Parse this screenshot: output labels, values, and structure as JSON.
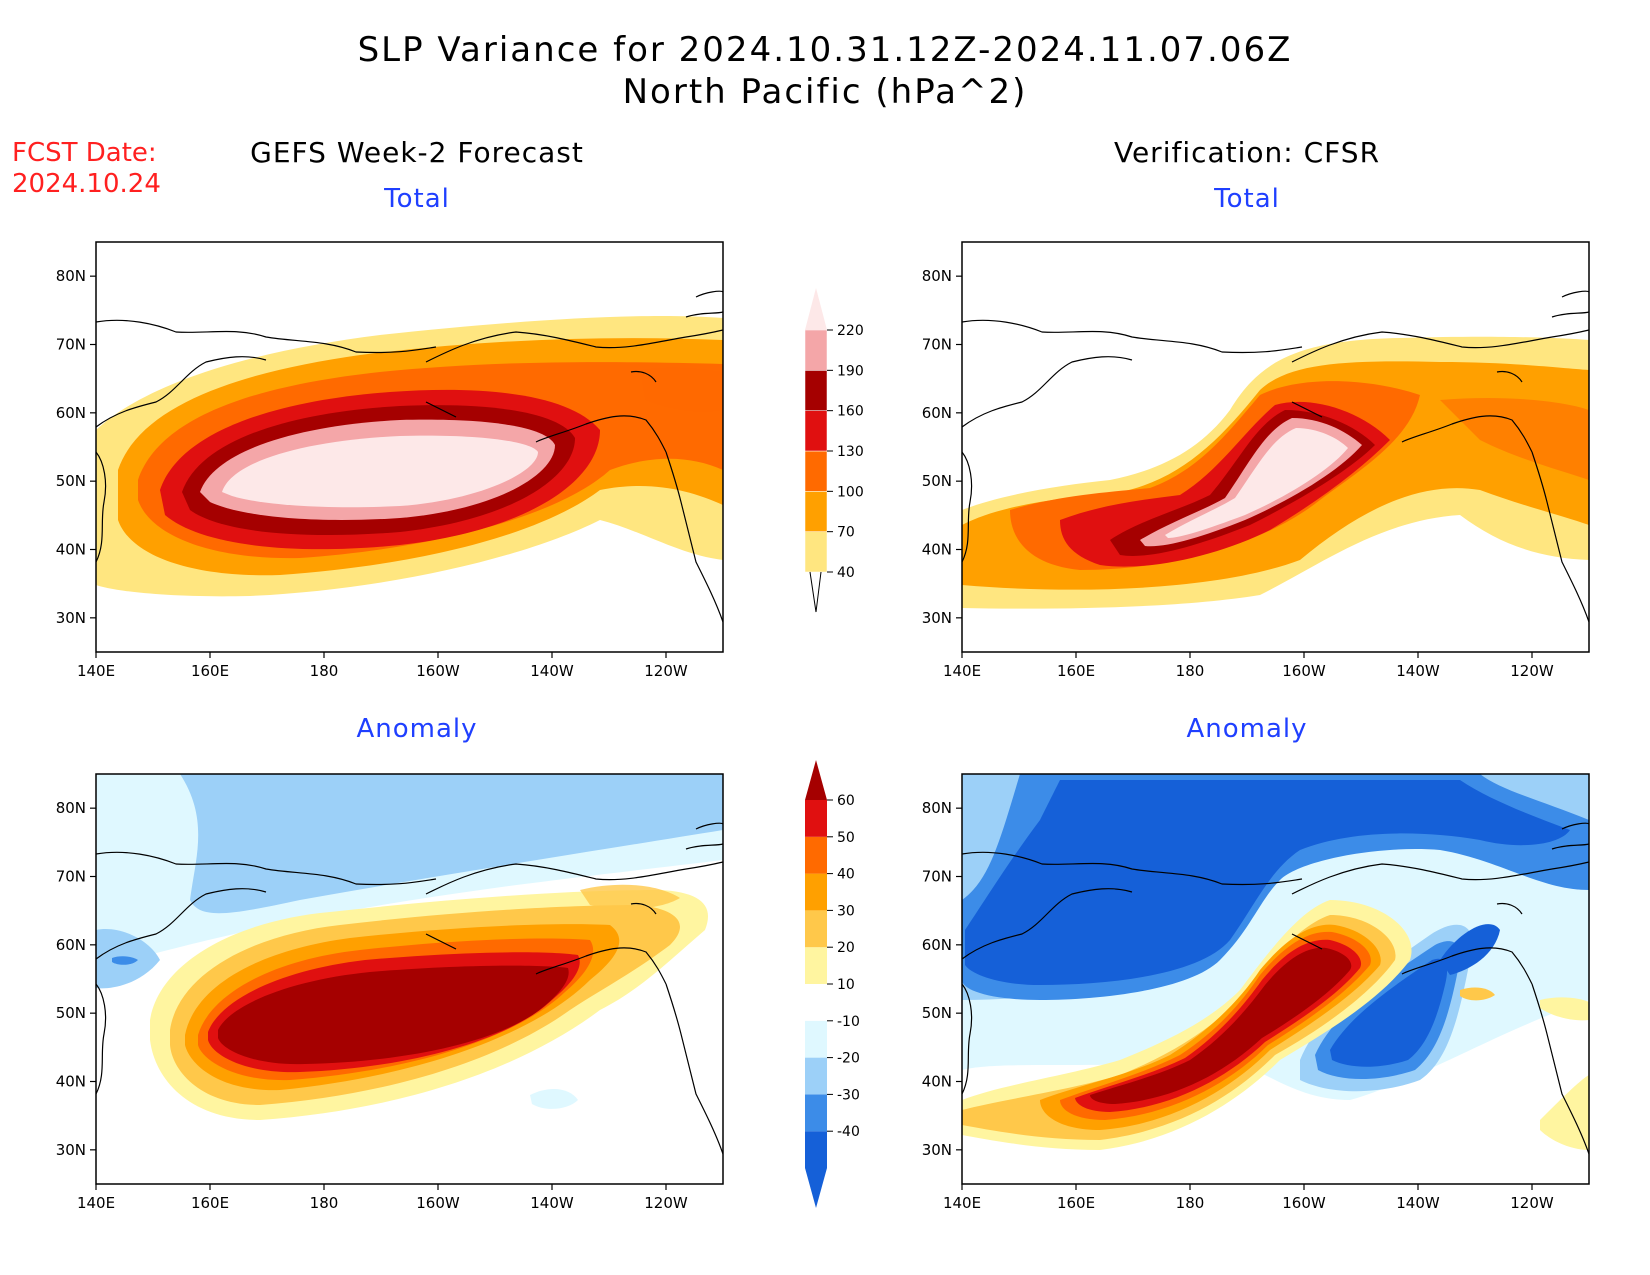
{
  "title": {
    "line1": "SLP Variance for 2024.10.31.12Z-2024.11.07.06Z",
    "line2": "North Pacific (hPa^2)"
  },
  "fcst": {
    "label": "FCST Date:",
    "date": "2024.10.24"
  },
  "columns": {
    "left": "GEFS Week-2 Forecast",
    "right": "Verification: CFSR"
  },
  "panel_titles": {
    "total": "Total",
    "anomaly": "Anomaly"
  },
  "axis": {
    "x_ticks": [
      "140E",
      "160E",
      "180",
      "160W",
      "140W",
      "120W"
    ],
    "y_ticks": [
      "30N",
      "40N",
      "50N",
      "60N",
      "70N",
      "80N"
    ]
  },
  "colors": {
    "total": [
      "#ffe680",
      "#ffa000",
      "#ff6a00",
      "#e01010",
      "#a50000",
      "#f4a6a8",
      "#fde8e8"
    ],
    "anomaly_neg": [
      "#1560d8",
      "#3c8ce8",
      "#9cd0f8",
      "#dff8ff"
    ],
    "anomaly_pos": [
      "#fff5a0",
      "#ffc84a",
      "#ffa000",
      "#ff6a00",
      "#e01010",
      "#a50000"
    ],
    "title_blue": "#1f3fff",
    "fcst_red": "#ff2020"
  },
  "chart_data": [
    {
      "type": "heatmap",
      "panel": "GEFS Week-2 Forecast - Total",
      "xlim": [
        "140E",
        "110W"
      ],
      "ylim": [
        "25N",
        "85N"
      ],
      "colorbar": {
        "levels": [
          40,
          70,
          100,
          130,
          160,
          190,
          220
        ]
      },
      "field_peak": {
        "lon": "175W",
        "lat": "51N",
        "value_class": ">220"
      }
    },
    {
      "type": "heatmap",
      "panel": "Verification: CFSR - Total",
      "xlim": [
        "140E",
        "110W"
      ],
      "ylim": [
        "25N",
        "85N"
      ],
      "colorbar": {
        "levels": [
          40,
          70,
          100,
          130,
          160,
          190,
          220
        ]
      },
      "field_peak": {
        "lon": "165W",
        "lat": "53N",
        "value_class": ">220"
      }
    },
    {
      "type": "heatmap",
      "panel": "GEFS Week-2 Forecast - Anomaly",
      "xlim": [
        "140E",
        "110W"
      ],
      "ylim": [
        "25N",
        "85N"
      ],
      "colorbar": {
        "levels": [
          -40,
          -30,
          -20,
          -10,
          10,
          20,
          30,
          40,
          50,
          60
        ]
      },
      "field_peak": {
        "lon": "170W",
        "lat": "50N",
        "value_class": ">60"
      }
    },
    {
      "type": "heatmap",
      "panel": "Verification: CFSR - Anomaly",
      "xlim": [
        "140E",
        "110W"
      ],
      "ylim": [
        "25N",
        "85N"
      ],
      "colorbar": {
        "levels": [
          -40,
          -30,
          -20,
          -10,
          10,
          20,
          30,
          40,
          50,
          60
        ]
      },
      "field_peak": {
        "lon": "170W",
        "lat": "46N",
        "value_class": ">60"
      },
      "field_min": {
        "lon": "165E",
        "lat": "58N",
        "value_class": "<-40"
      }
    }
  ]
}
